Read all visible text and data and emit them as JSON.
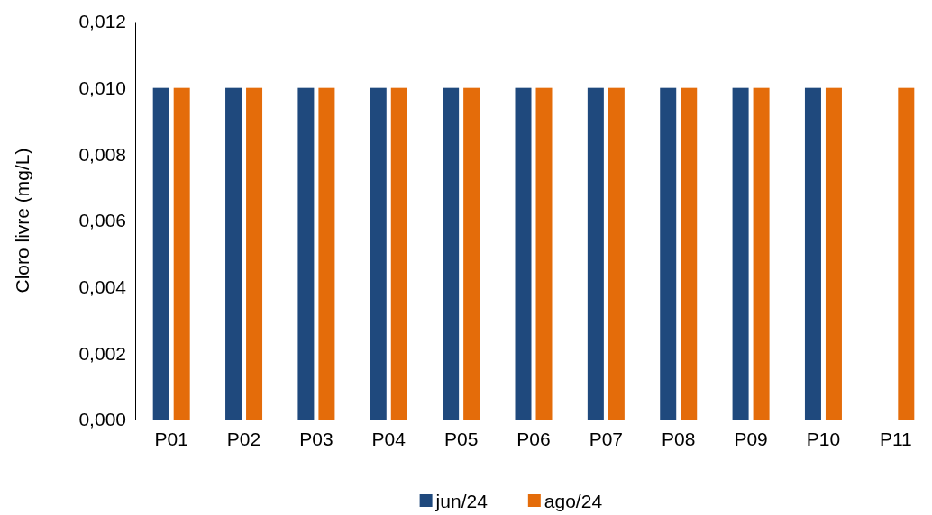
{
  "chart_data": {
    "type": "bar",
    "ylabel": "Cloro livre (mg/L)",
    "categories": [
      "P01",
      "P02",
      "P03",
      "P04",
      "P05",
      "P06",
      "P07",
      "P08",
      "P09",
      "P10",
      "P11"
    ],
    "series": [
      {
        "name": "jun/24",
        "color": "#1f497d",
        "values": [
          0.01,
          0.01,
          0.01,
          0.01,
          0.01,
          0.01,
          0.01,
          0.01,
          0.01,
          0.01,
          null
        ]
      },
      {
        "name": "ago/24",
        "color": "#e46c0a",
        "values": [
          0.01,
          0.01,
          0.01,
          0.01,
          0.01,
          0.01,
          0.01,
          0.01,
          0.01,
          0.01,
          0.01
        ]
      }
    ],
    "ylim": [
      0,
      0.012
    ],
    "yticks": [
      {
        "value": 0,
        "label": "0,000"
      },
      {
        "value": 0.002,
        "label": "0,002"
      },
      {
        "value": 0.004,
        "label": "0,004"
      },
      {
        "value": 0.006,
        "label": "0,006"
      },
      {
        "value": 0.008,
        "label": "0,008"
      },
      {
        "value": 0.01,
        "label": "0,010"
      },
      {
        "value": 0.012,
        "label": "0,012"
      }
    ],
    "grid": false,
    "legend": "bottom"
  }
}
